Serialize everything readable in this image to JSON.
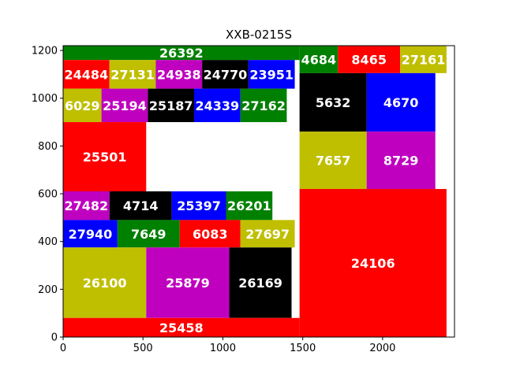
{
  "chart_data": {
    "type": "treemap",
    "title": "XXB-0215S",
    "xlabel": "",
    "ylabel": "",
    "xlim": [
      0,
      2450
    ],
    "ylim": [
      0,
      1220
    ],
    "xticks": [
      0,
      500,
      1000,
      1500,
      2000
    ],
    "yticks": [
      0,
      200,
      400,
      600,
      800,
      1000,
      1200
    ],
    "grid": false,
    "rects": [
      {
        "label": "26392",
        "x0": 0,
        "y0": 1160,
        "x1": 1480,
        "y1": 1220,
        "color": "#008000"
      },
      {
        "label": "24484",
        "x0": 0,
        "y0": 1040,
        "x1": 290,
        "y1": 1160,
        "color": "#ff0000"
      },
      {
        "label": "27131",
        "x0": 290,
        "y0": 1040,
        "x1": 580,
        "y1": 1160,
        "color": "#bfbf00"
      },
      {
        "label": "24938",
        "x0": 580,
        "y0": 1040,
        "x1": 870,
        "y1": 1160,
        "color": "#bf00bf"
      },
      {
        "label": "24770",
        "x0": 870,
        "y0": 1040,
        "x1": 1160,
        "y1": 1160,
        "color": "#000000"
      },
      {
        "label": "23951",
        "x0": 1160,
        "y0": 1040,
        "x1": 1450,
        "y1": 1160,
        "color": "#0000ff"
      },
      {
        "label": "6029",
        "x0": 0,
        "y0": 900,
        "x1": 240,
        "y1": 1040,
        "color": "#bfbf00"
      },
      {
        "label": "25194",
        "x0": 240,
        "y0": 900,
        "x1": 530,
        "y1": 1040,
        "color": "#bf00bf"
      },
      {
        "label": "25187",
        "x0": 530,
        "y0": 900,
        "x1": 820,
        "y1": 1040,
        "color": "#000000"
      },
      {
        "label": "24339",
        "x0": 820,
        "y0": 900,
        "x1": 1110,
        "y1": 1040,
        "color": "#0000ff"
      },
      {
        "label": "27162",
        "x0": 1110,
        "y0": 900,
        "x1": 1400,
        "y1": 1040,
        "color": "#008000"
      },
      {
        "label": "25501",
        "x0": 0,
        "y0": 610,
        "x1": 520,
        "y1": 900,
        "color": "#ff0000"
      },
      {
        "label": "27482",
        "x0": 0,
        "y0": 490,
        "x1": 290,
        "y1": 610,
        "color": "#bf00bf"
      },
      {
        "label": "4714",
        "x0": 290,
        "y0": 490,
        "x1": 680,
        "y1": 610,
        "color": "#000000"
      },
      {
        "label": "25397",
        "x0": 680,
        "y0": 490,
        "x1": 1020,
        "y1": 610,
        "color": "#0000ff"
      },
      {
        "label": "26201",
        "x0": 1020,
        "y0": 490,
        "x1": 1310,
        "y1": 610,
        "color": "#008000"
      },
      {
        "label": "27940",
        "x0": 0,
        "y0": 375,
        "x1": 340,
        "y1": 490,
        "color": "#0000ff"
      },
      {
        "label": "7649",
        "x0": 340,
        "y0": 375,
        "x1": 730,
        "y1": 490,
        "color": "#008000"
      },
      {
        "label": "6083",
        "x0": 730,
        "y0": 375,
        "x1": 1110,
        "y1": 490,
        "color": "#ff0000"
      },
      {
        "label": "27697",
        "x0": 1110,
        "y0": 375,
        "x1": 1450,
        "y1": 490,
        "color": "#bfbf00"
      },
      {
        "label": "26100",
        "x0": 0,
        "y0": 80,
        "x1": 520,
        "y1": 375,
        "color": "#bfbf00"
      },
      {
        "label": "25879",
        "x0": 520,
        "y0": 80,
        "x1": 1040,
        "y1": 375,
        "color": "#bf00bf"
      },
      {
        "label": "26169",
        "x0": 1040,
        "y0": 80,
        "x1": 1430,
        "y1": 375,
        "color": "#000000"
      },
      {
        "label": "25458",
        "x0": 0,
        "y0": 0,
        "x1": 1480,
        "y1": 80,
        "color": "#ff0000"
      },
      {
        "label": "4684",
        "x0": 1480,
        "y0": 1105,
        "x1": 1720,
        "y1": 1220,
        "color": "#008000"
      },
      {
        "label": "8465",
        "x0": 1720,
        "y0": 1105,
        "x1": 2110,
        "y1": 1220,
        "color": "#ff0000"
      },
      {
        "label": "27161",
        "x0": 2110,
        "y0": 1105,
        "x1": 2400,
        "y1": 1220,
        "color": "#bfbf00"
      },
      {
        "label": "5632",
        "x0": 1480,
        "y0": 860,
        "x1": 1900,
        "y1": 1105,
        "color": "#000000"
      },
      {
        "label": "4670",
        "x0": 1900,
        "y0": 860,
        "x1": 2330,
        "y1": 1105,
        "color": "#0000ff"
      },
      {
        "label": "7657",
        "x0": 1480,
        "y0": 620,
        "x1": 1900,
        "y1": 860,
        "color": "#bfbf00"
      },
      {
        "label": "8729",
        "x0": 1900,
        "y0": 620,
        "x1": 2330,
        "y1": 860,
        "color": "#bf00bf"
      },
      {
        "label": "24106",
        "x0": 1480,
        "y0": 0,
        "x1": 2400,
        "y1": 620,
        "color": "#ff0000"
      }
    ]
  }
}
